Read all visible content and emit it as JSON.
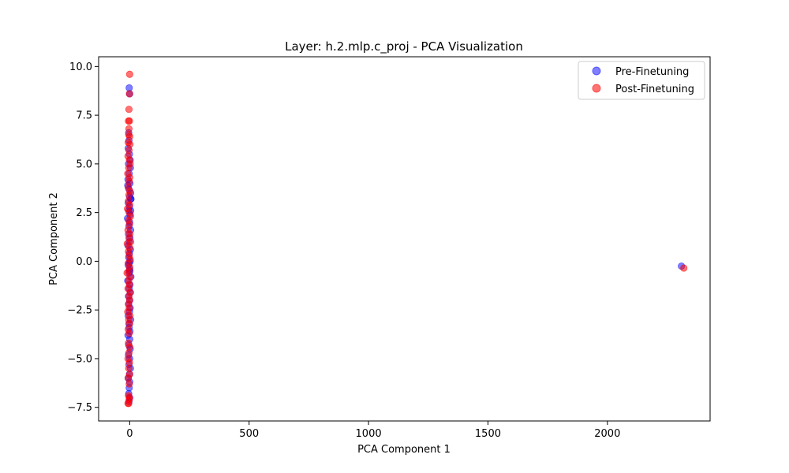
{
  "chart_data": {
    "type": "scatter",
    "title": "Layer: h.2.mlp.c_proj - PCA Visualization",
    "xlabel": "PCA Component 1",
    "ylabel": "PCA Component 2",
    "xlim": [
      -130,
      2430
    ],
    "ylim": [
      -8.2,
      10.5
    ],
    "xticks": [
      0,
      500,
      1000,
      1500,
      2000
    ],
    "yticks": [
      -7.5,
      -5.0,
      -2.5,
      0.0,
      2.5,
      5.0,
      7.5,
      10.0
    ],
    "xtick_labels": [
      "0",
      "500",
      "1000",
      "1500",
      "2000"
    ],
    "ytick_labels": [
      "−7.5",
      "−5.0",
      "−2.5",
      "0.0",
      "2.5",
      "5.0",
      "7.5",
      "10.0"
    ],
    "grid": false,
    "legend_position": "top-right",
    "series": [
      {
        "name": "Pre-Finetuning",
        "color": "#0000ff",
        "alpha": 0.5,
        "points": [
          [
            -2,
            8.9
          ],
          [
            0,
            8.6
          ],
          [
            -4,
            6.6
          ],
          [
            -3,
            6.2
          ],
          [
            -6,
            5.8
          ],
          [
            -1,
            5.5
          ],
          [
            2,
            5.2
          ],
          [
            -5,
            5.0
          ],
          [
            3,
            4.8
          ],
          [
            -2,
            4.5
          ],
          [
            -7,
            4.2
          ],
          [
            1,
            4.0
          ],
          [
            -8,
            3.9
          ],
          [
            -3,
            3.7
          ],
          [
            4,
            3.5
          ],
          [
            0,
            3.3
          ],
          [
            -6,
            3.0
          ],
          [
            5,
            3.2
          ],
          [
            -1,
            2.8
          ],
          [
            -4,
            2.6
          ],
          [
            2,
            2.4
          ],
          [
            -9,
            2.2
          ],
          [
            0,
            2.0
          ],
          [
            -3,
            1.8
          ],
          [
            4,
            1.6
          ],
          [
            -5,
            1.4
          ],
          [
            1,
            1.2
          ],
          [
            -2,
            1.0
          ],
          [
            -7,
            0.8
          ],
          [
            3,
            0.6
          ],
          [
            -1,
            0.4
          ],
          [
            -4,
            0.2
          ],
          [
            2,
            0.0
          ],
          [
            -6,
            -0.2
          ],
          [
            0,
            -0.4
          ],
          [
            -3,
            -0.6
          ],
          [
            5,
            -0.8
          ],
          [
            -8,
            -1.0
          ],
          [
            1,
            -1.2
          ],
          [
            -2,
            -1.4
          ],
          [
            3,
            -1.6
          ],
          [
            -5,
            -1.8
          ],
          [
            0,
            -2.0
          ],
          [
            -4,
            -2.2
          ],
          [
            2,
            -2.4
          ],
          [
            -1,
            -2.6
          ],
          [
            -6,
            -2.8
          ],
          [
            4,
            -3.0
          ],
          [
            -3,
            -3.2
          ],
          [
            -2,
            -3.4
          ],
          [
            1,
            -3.6
          ],
          [
            -7,
            -3.8
          ],
          [
            0,
            -4.0
          ],
          [
            -4,
            -4.3
          ],
          [
            2,
            -4.5
          ],
          [
            -5,
            -4.8
          ],
          [
            0,
            -5.0
          ],
          [
            -3,
            -5.3
          ],
          [
            3,
            -5.5
          ],
          [
            -1,
            -5.8
          ],
          [
            -6,
            -6.0
          ],
          [
            0,
            -6.2
          ],
          [
            -2,
            -6.5
          ],
          [
            -4,
            -6.8
          ],
          [
            0,
            -7.0
          ],
          [
            -3,
            -7.2
          ],
          [
            4,
            2.6
          ],
          [
            5,
            3.2
          ],
          [
            -2,
            -0.1
          ],
          [
            1,
            -0.5
          ],
          [
            2310,
            -0.25
          ]
        ]
      },
      {
        "name": "Post-Finetuning",
        "color": "#ff0000",
        "alpha": 0.55,
        "points": [
          [
            0,
            9.6
          ],
          [
            -1,
            8.6
          ],
          [
            -3,
            7.8
          ],
          [
            -5,
            7.2
          ],
          [
            -1,
            7.2
          ],
          [
            -4,
            6.5
          ],
          [
            0,
            6.4
          ],
          [
            -6,
            6.1
          ],
          [
            1,
            6.0
          ],
          [
            -3,
            5.7
          ],
          [
            -7,
            5.4
          ],
          [
            -1,
            5.2
          ],
          [
            2,
            5.0
          ],
          [
            -4,
            4.8
          ],
          [
            -8,
            4.5
          ],
          [
            0,
            4.3
          ],
          [
            -2,
            4.1
          ],
          [
            -6,
            3.8
          ],
          [
            1,
            3.6
          ],
          [
            -3,
            3.4
          ],
          [
            -5,
            3.1
          ],
          [
            0,
            2.9
          ],
          [
            -9,
            2.7
          ],
          [
            -2,
            2.5
          ],
          [
            3,
            2.3
          ],
          [
            -4,
            2.1
          ],
          [
            -1,
            1.9
          ],
          [
            -7,
            1.6
          ],
          [
            1,
            1.4
          ],
          [
            -3,
            1.2
          ],
          [
            4,
            1.0
          ],
          [
            -10,
            0.9
          ],
          [
            0,
            0.7
          ],
          [
            -5,
            0.5
          ],
          [
            -2,
            0.3
          ],
          [
            2,
            0.1
          ],
          [
            -6,
            -0.1
          ],
          [
            0,
            -0.3
          ],
          [
            -3,
            -0.5
          ],
          [
            -11,
            -0.6
          ],
          [
            1,
            -0.8
          ],
          [
            -4,
            -1.0
          ],
          [
            -1,
            -1.2
          ],
          [
            -7,
            -1.4
          ],
          [
            2,
            -1.6
          ],
          [
            -3,
            -1.8
          ],
          [
            0,
            -2.0
          ],
          [
            -5,
            -2.2
          ],
          [
            -2,
            -2.4
          ],
          [
            -8,
            -2.6
          ],
          [
            1,
            -2.8
          ],
          [
            -4,
            -3.0
          ],
          [
            0,
            -3.2
          ],
          [
            -6,
            -3.5
          ],
          [
            -2,
            -3.7
          ],
          [
            -5,
            -4.2
          ],
          [
            0,
            -4.4
          ],
          [
            -3,
            -4.7
          ],
          [
            -7,
            -5.0
          ],
          [
            -1,
            -5.2
          ],
          [
            -4,
            -5.5
          ],
          [
            0,
            -5.8
          ],
          [
            -6,
            -6.0
          ],
          [
            -2,
            -6.3
          ],
          [
            -5,
            -6.9
          ],
          [
            -1,
            -7.0
          ],
          [
            -4,
            -7.3
          ],
          [
            -7,
            -7.3
          ],
          [
            -2,
            -7.1
          ],
          [
            -3,
            6.8
          ],
          [
            2320,
            -0.35
          ]
        ]
      }
    ]
  }
}
